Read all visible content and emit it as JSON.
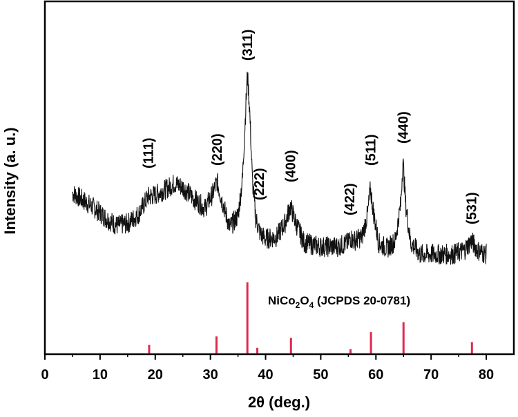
{
  "chart_data": {
    "type": "line",
    "xlabel": "2θ (deg.)",
    "ylabel": "Intensity (a. u.)",
    "xlim": [
      0,
      85
    ],
    "xticks": [
      0,
      10,
      20,
      30,
      40,
      50,
      60,
      70,
      80
    ],
    "yticks_shown": false,
    "grid": false,
    "series": [
      {
        "x": [
          5,
          7,
          9,
          11,
          13,
          15,
          17,
          18.7,
          20,
          22,
          23.5,
          25,
          27,
          29,
          30.5,
          31.2,
          32,
          33.5,
          35,
          35.8,
          36.4,
          36.7,
          37.1,
          37.6,
          38.2,
          39,
          40,
          42,
          43.5,
          44.5,
          45.5,
          47,
          50,
          53,
          55,
          55.3,
          56,
          57.5,
          58.5,
          59,
          59.6,
          60.5,
          62,
          63.5,
          64.5,
          64.9,
          65.4,
          66.3,
          68,
          71,
          74,
          76,
          77.3,
          78.5,
          80
        ],
        "y": [
          0.38,
          0.34,
          0.3,
          0.25,
          0.21,
          0.22,
          0.27,
          0.36,
          0.37,
          0.4,
          0.43,
          0.41,
          0.35,
          0.3,
          0.38,
          0.44,
          0.35,
          0.2,
          0.26,
          0.45,
          0.82,
          1.0,
          0.82,
          0.45,
          0.25,
          0.17,
          0.14,
          0.15,
          0.22,
          0.31,
          0.22,
          0.12,
          0.1,
          0.1,
          0.12,
          0.15,
          0.13,
          0.15,
          0.27,
          0.4,
          0.27,
          0.12,
          0.09,
          0.13,
          0.32,
          0.55,
          0.32,
          0.12,
          0.06,
          0.06,
          0.06,
          0.08,
          0.13,
          0.08,
          0.06
        ]
      }
    ],
    "peak_labels": [
      {
        "x": 18.7,
        "text": "(111)"
      },
      {
        "x": 31.2,
        "text": "(220)"
      },
      {
        "x": 36.7,
        "text": "(311)"
      },
      {
        "x": 38.8,
        "text": "(222)"
      },
      {
        "x": 44.5,
        "text": "(400)"
      },
      {
        "x": 55.2,
        "text": "(422)"
      },
      {
        "x": 59.0,
        "text": "(511)"
      },
      {
        "x": 64.9,
        "text": "(440)"
      },
      {
        "x": 77.3,
        "text": "(531)"
      }
    ],
    "reference": {
      "label_main": "NiCo",
      "label_sub1": "2",
      "label_mid": "O",
      "label_sub2": "4",
      "label_rest": " (JCPDS 20-0781)",
      "color": "#e0284f",
      "x": [
        18.9,
        31.1,
        36.7,
        38.5,
        44.6,
        55.4,
        59.1,
        65.0,
        77.4
      ],
      "intensity": [
        12,
        24,
        100,
        8,
        22,
        6,
        30,
        44,
        16
      ]
    },
    "line_color": "#111111"
  }
}
